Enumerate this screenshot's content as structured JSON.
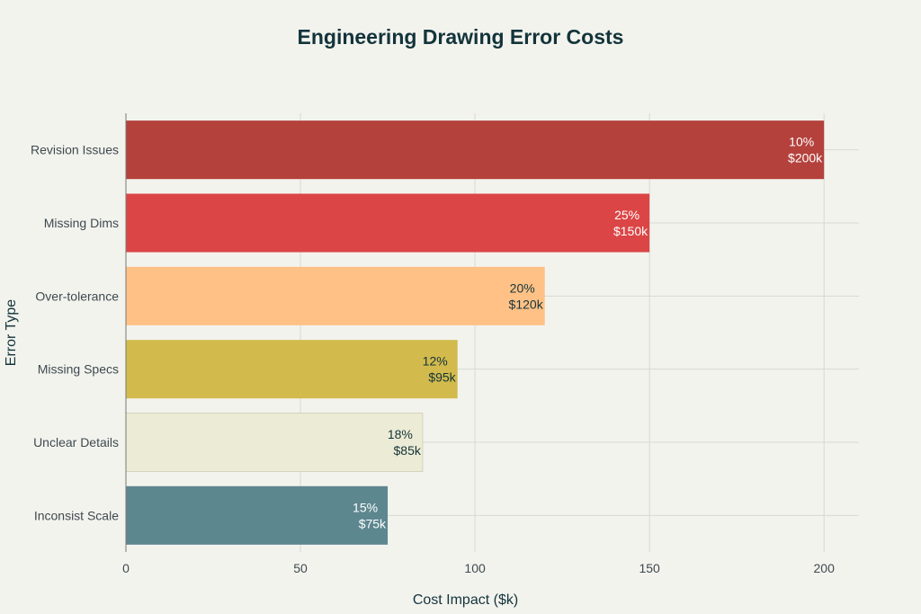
{
  "chart_data": {
    "type": "bar",
    "orientation": "horizontal",
    "title": "Engineering Drawing Error Costs",
    "xlabel": "Cost Impact ($k)",
    "ylabel": "Error Type",
    "xlim": [
      0,
      210
    ],
    "xticks": [
      0,
      50,
      100,
      150,
      200
    ],
    "grid": true,
    "categories": [
      "Revision Issues",
      "Missing Dims",
      "Over-tolerance",
      "Missing Specs",
      "Unclear Details",
      "Inconsist Scale"
    ],
    "values": [
      200,
      150,
      120,
      95,
      85,
      75
    ],
    "percent_labels": [
      "10%",
      "25%",
      "20%",
      "12%",
      "18%",
      "15%"
    ],
    "value_labels": [
      "$200k",
      "$150k",
      "$120k",
      "$95k",
      "$85k",
      "$75k"
    ],
    "colors": [
      "#b4413c",
      "#db4545",
      "#ffc185",
      "#d2ba4c",
      "#ecebd5",
      "#5d878f"
    ],
    "label_colors": [
      "#ffffff",
      "#ffffff",
      "#13343b",
      "#13343b",
      "#13343b",
      "#ffffff"
    ]
  }
}
